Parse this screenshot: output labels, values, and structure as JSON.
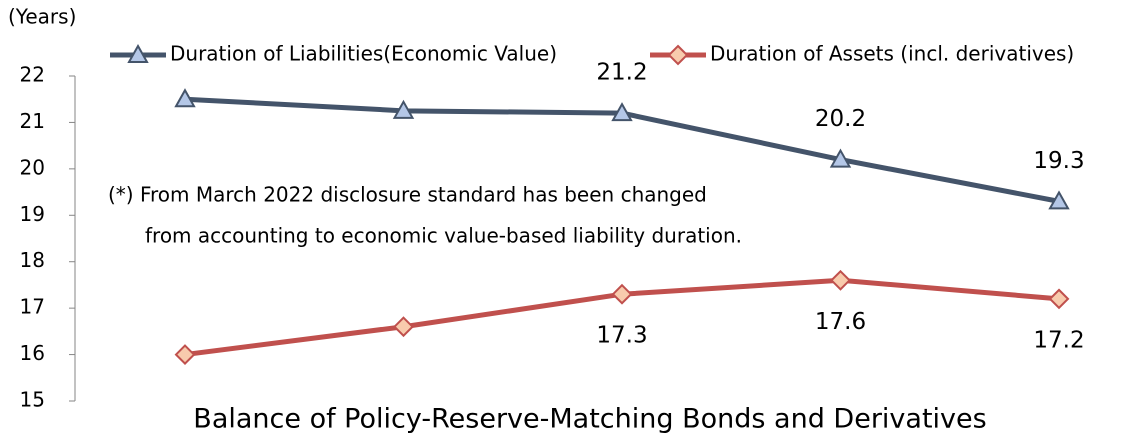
{
  "chart_data": {
    "type": "line",
    "y_label": "(Years)",
    "x_label": "Balance of Policy-Reserve-Matching Bonds and Derivatives",
    "annotation": [
      "(*) From March 2022 disclosure standard has been changed",
      "from accounting to economic value-based liability duration."
    ],
    "categories": [
      null,
      null,
      null,
      null,
      null
    ],
    "series": [
      {
        "name": "Duration of Liabilities(Economic Value)",
        "color": "#44546a",
        "marker": "triangle",
        "marker_fill": "#b4c7e7",
        "values": [
          21.5,
          21.25,
          21.2,
          20.2,
          19.3
        ],
        "value_labels": [
          null,
          null,
          "21.2",
          "20.2",
          "19.3"
        ],
        "label_position": "above"
      },
      {
        "name": "Duration of Assets (incl. derivatives)",
        "color": "#c0504d",
        "marker": "diamond",
        "marker_fill": "#f8cbad",
        "values": [
          16.0,
          16.6,
          17.3,
          17.6,
          17.2
        ],
        "value_labels": [
          null,
          null,
          "17.3",
          "17.6",
          "17.2"
        ],
        "label_position": "below"
      }
    ],
    "ylim": [
      15,
      22
    ],
    "yticks": [
      15,
      16,
      17,
      18,
      19,
      20,
      21,
      22
    ],
    "grid": false,
    "legend": "top"
  }
}
